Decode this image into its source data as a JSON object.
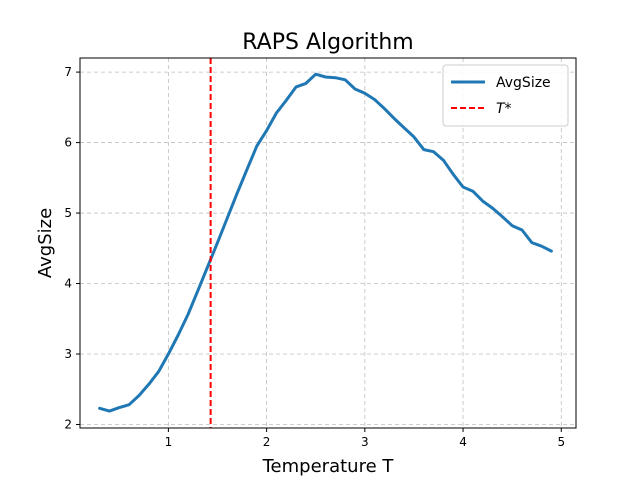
{
  "chart_data": {
    "type": "line",
    "title": "RAPS Algorithm",
    "xlabel": "Temperature T",
    "ylabel": "AvgSize",
    "xlim": [
      0.1,
      5.15
    ],
    "ylim": [
      1.95,
      7.2
    ],
    "xticks": [
      1,
      2,
      3,
      4,
      5
    ],
    "yticks": [
      2,
      3,
      4,
      5,
      6,
      7
    ],
    "grid": true,
    "legend_position": "top-right",
    "series": [
      {
        "name": "AvgSize",
        "color": "#1f77b4",
        "style": "solid",
        "x": [
          0.3,
          0.4,
          0.5,
          0.6,
          0.7,
          0.8,
          0.9,
          1.0,
          1.1,
          1.2,
          1.3,
          1.4,
          1.5,
          1.6,
          1.7,
          1.8,
          1.9,
          2.0,
          2.1,
          2.2,
          2.3,
          2.4,
          2.5,
          2.6,
          2.7,
          2.8,
          2.9,
          3.0,
          3.1,
          3.2,
          3.3,
          3.4,
          3.5,
          3.6,
          3.7,
          3.8,
          3.9,
          4.0,
          4.1,
          4.2,
          4.3,
          4.4,
          4.5,
          4.6,
          4.7,
          4.8,
          4.9
        ],
        "y": [
          2.23,
          2.19,
          2.24,
          2.28,
          2.41,
          2.57,
          2.75,
          3.0,
          3.27,
          3.56,
          3.9,
          4.24,
          4.58,
          4.93,
          5.28,
          5.62,
          5.95,
          6.17,
          6.42,
          6.6,
          6.79,
          6.84,
          6.97,
          6.93,
          6.92,
          6.89,
          6.76,
          6.7,
          6.61,
          6.48,
          6.34,
          6.21,
          6.08,
          5.9,
          5.87,
          5.75,
          5.55,
          5.37,
          5.31,
          5.17,
          5.07,
          4.95,
          4.82,
          4.76,
          4.58,
          4.53,
          4.46
        ]
      },
      {
        "name": "T*",
        "color": "#ff0000",
        "style": "dashed",
        "vertical_x": 1.43
      }
    ]
  }
}
